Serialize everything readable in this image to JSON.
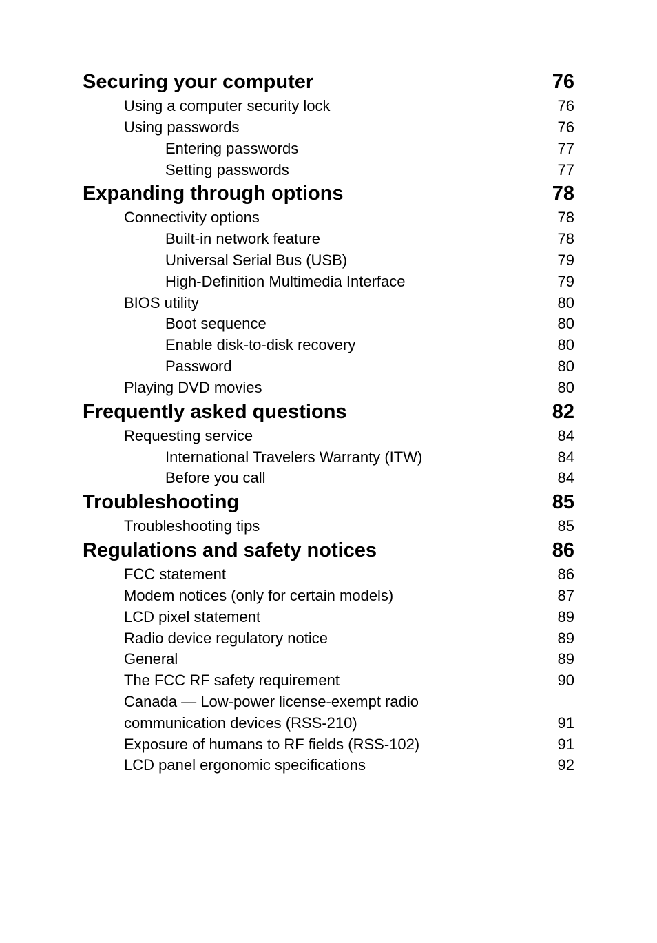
{
  "toc": [
    {
      "level": 1,
      "title": "Securing your computer",
      "page": "76"
    },
    {
      "level": 2,
      "title": "Using a computer security lock",
      "page": "76"
    },
    {
      "level": 2,
      "title": "Using passwords",
      "page": "76"
    },
    {
      "level": 3,
      "title": "Entering passwords",
      "page": "77"
    },
    {
      "level": 3,
      "title": "Setting passwords",
      "page": "77"
    },
    {
      "level": 1,
      "title": "Expanding through options",
      "page": "78"
    },
    {
      "level": 2,
      "title": "Connectivity options",
      "page": "78"
    },
    {
      "level": 3,
      "title": "Built-in network feature",
      "page": "78"
    },
    {
      "level": 3,
      "title": "Universal Serial Bus (USB)",
      "page": "79"
    },
    {
      "level": 3,
      "title": "High-Definition Multimedia Interface",
      "page": "79"
    },
    {
      "level": 2,
      "title": "BIOS utility",
      "page": "80"
    },
    {
      "level": 3,
      "title": "Boot sequence",
      "page": "80"
    },
    {
      "level": 3,
      "title": "Enable disk-to-disk recovery",
      "page": "80"
    },
    {
      "level": 3,
      "title": "Password",
      "page": "80"
    },
    {
      "level": 2,
      "title": "Playing DVD movies",
      "page": "80"
    },
    {
      "level": 1,
      "title": "Frequently asked questions",
      "page": "82"
    },
    {
      "level": 2,
      "title": "Requesting service",
      "page": "84"
    },
    {
      "level": 3,
      "title": "International Travelers Warranty (ITW)",
      "page": "84"
    },
    {
      "level": 3,
      "title": "Before you call",
      "page": "84"
    },
    {
      "level": 1,
      "title": "Troubleshooting",
      "page": "85"
    },
    {
      "level": 2,
      "title": "Troubleshooting tips",
      "page": "85"
    },
    {
      "level": 1,
      "title": "Regulations and safety notices",
      "page": "86"
    },
    {
      "level": 2,
      "title": "FCC statement",
      "page": "86"
    },
    {
      "level": 2,
      "title": "Modem notices (only for certain models)",
      "page": "87"
    },
    {
      "level": 2,
      "title": "LCD pixel statement",
      "page": "89"
    },
    {
      "level": 2,
      "title": "Radio device regulatory notice",
      "page": "89"
    },
    {
      "level": 2,
      "title": "General",
      "page": "89"
    },
    {
      "level": 2,
      "title": "The FCC RF safety requirement",
      "page": "90"
    },
    {
      "level": 2,
      "title": "Canada — Low-power license-exempt radio",
      "page": ""
    },
    {
      "level": 2,
      "title": "communication devices (RSS-210)",
      "page": "91"
    },
    {
      "level": 2,
      "title": "Exposure of humans to RF fields (RSS-102)",
      "page": "91"
    },
    {
      "level": 2,
      "title": "LCD panel ergonomic specifications",
      "page": "92"
    }
  ]
}
